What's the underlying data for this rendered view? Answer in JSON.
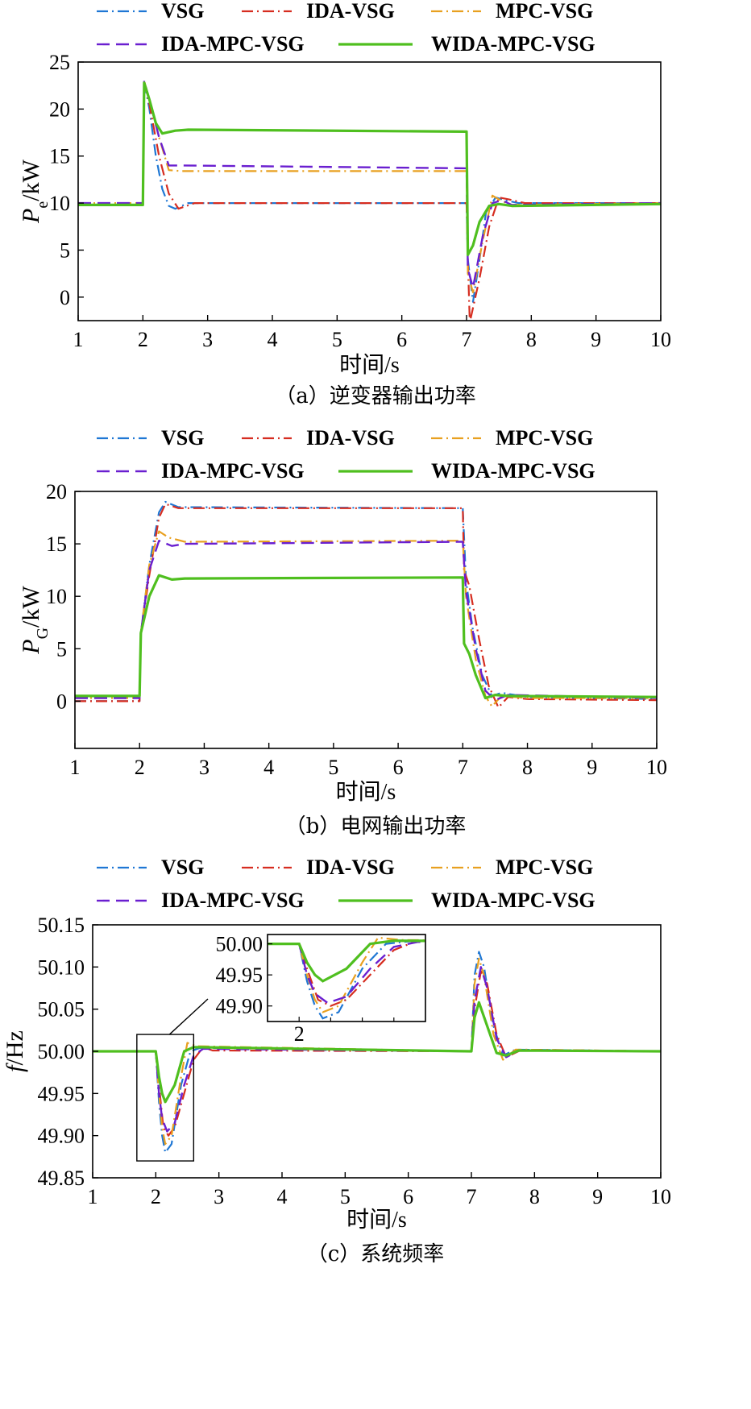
{
  "colors": {
    "VSG": "#1f77d4",
    "IDA-VSG": "#d62d20",
    "MPC-VSG": "#e8a020",
    "IDA-MPC-VSG": "#6a1fd0",
    "WIDA-MPC-VSG": "#4fbf1f"
  },
  "chart_data": [
    {
      "type": "line",
      "panel_id": "a",
      "caption": "（a）逆变器输出功率",
      "xlabel": "时间/s",
      "ylabel": "P",
      "ylabel_sub": "e",
      "ylabel_unit": "/kW",
      "xlim": [
        1,
        10
      ],
      "ylim": [
        -2.5,
        25
      ],
      "xticks": [
        1,
        2,
        3,
        4,
        5,
        6,
        7,
        8,
        9,
        10
      ],
      "yticks": [
        0,
        5,
        10,
        15,
        20,
        25
      ],
      "legend": [
        "VSG",
        "IDA-VSG",
        "MPC-VSG",
        "IDA-MPC-VSG",
        "WIDA-MPC-VSG"
      ],
      "series": [
        {
          "name": "VSG",
          "x": [
            1,
            2,
            2.02,
            2.1,
            2.2,
            2.3,
            2.4,
            2.5,
            2.7,
            7,
            7.02,
            7.1,
            7.2,
            7.3,
            7.45,
            7.6,
            7.8,
            10
          ],
          "y": [
            10,
            10,
            23,
            20,
            15,
            11.5,
            9.7,
            9.4,
            10,
            10,
            4,
            -0.5,
            4,
            9,
            10.6,
            10.3,
            10,
            10
          ]
        },
        {
          "name": "IDA-VSG",
          "x": [
            1,
            2,
            2.02,
            2.1,
            2.25,
            2.4,
            2.55,
            2.8,
            7,
            7.02,
            7.05,
            7.2,
            7.35,
            7.5,
            7.65,
            7.9,
            10
          ],
          "y": [
            10,
            10,
            23,
            20.5,
            15,
            11,
            9.4,
            10,
            10,
            4,
            -2.7,
            2,
            7.5,
            10.6,
            10.4,
            10,
            10
          ]
        },
        {
          "name": "MPC-VSG",
          "x": [
            1,
            2,
            2.02,
            2.1,
            2.25,
            2.4,
            2.6,
            7,
            7.02,
            7.1,
            7.25,
            7.4,
            7.55,
            7.7,
            10
          ],
          "y": [
            10,
            10,
            23,
            21,
            17,
            13.5,
            13.4,
            13.4,
            2.5,
            0.5,
            6,
            10.8,
            10.2,
            9.8,
            10
          ]
        },
        {
          "name": "IDA-MPC-VSG",
          "x": [
            1,
            2,
            2.02,
            2.1,
            2.25,
            2.4,
            2.6,
            7,
            7.02,
            7.1,
            7.25,
            7.4,
            7.55,
            7.7,
            10
          ],
          "y": [
            10,
            10,
            23,
            21,
            17,
            14,
            14,
            13.7,
            3,
            1,
            6.5,
            10,
            10.3,
            9.8,
            10
          ]
        },
        {
          "name": "WIDA-MPC-VSG",
          "x": [
            1,
            2,
            2.02,
            2.1,
            2.2,
            2.3,
            2.5,
            2.7,
            7,
            7.02,
            7.1,
            7.2,
            7.35,
            7.5,
            7.7,
            10
          ],
          "y": [
            9.8,
            9.8,
            22.8,
            21,
            18.5,
            17.4,
            17.7,
            17.8,
            17.6,
            4.5,
            5.5,
            8,
            9.7,
            9.9,
            9.7,
            9.9
          ]
        }
      ]
    },
    {
      "type": "line",
      "panel_id": "b",
      "caption": "（b）电网输出功率",
      "xlabel": "时间/s",
      "ylabel": "P",
      "ylabel_sub": "G",
      "ylabel_unit": "/kW",
      "xlim": [
        1,
        10
      ],
      "ylim": [
        -4.5,
        20
      ],
      "xticks": [
        1,
        2,
        3,
        4,
        5,
        6,
        7,
        8,
        9,
        10
      ],
      "yticks": [
        0,
        5,
        10,
        15,
        20
      ],
      "legend": [
        "VSG",
        "IDA-VSG",
        "MPC-VSG",
        "IDA-MPC-VSG",
        "WIDA-MPC-VSG"
      ],
      "series": [
        {
          "name": "VSG",
          "x": [
            1,
            2,
            2.02,
            2.15,
            2.3,
            2.4,
            2.6,
            7,
            7.05,
            7.15,
            7.3,
            7.45,
            7.6,
            8,
            10
          ],
          "y": [
            0,
            0,
            6.5,
            13,
            18,
            19,
            18.5,
            18.4,
            11.5,
            7,
            2.5,
            0.5,
            0.8,
            0.4,
            0.2
          ]
        },
        {
          "name": "IDA-VSG",
          "x": [
            1,
            2,
            2.02,
            2.15,
            2.3,
            2.4,
            2.6,
            7,
            7.02,
            7.1,
            7.25,
            7.4,
            7.55,
            7.7,
            8,
            10
          ],
          "y": [
            0,
            0,
            6.5,
            12,
            17.5,
            18.8,
            18.4,
            18.4,
            12.5,
            11,
            6,
            1.5,
            -0.6,
            0.4,
            0.2,
            0.1
          ]
        },
        {
          "name": "MPC-VSG",
          "x": [
            1,
            2,
            2.02,
            2.15,
            2.3,
            2.45,
            2.7,
            7,
            7.05,
            7.2,
            7.35,
            7.45,
            7.6,
            8,
            10
          ],
          "y": [
            0.3,
            0.3,
            6.5,
            13,
            16.2,
            15.6,
            15.2,
            15.3,
            10,
            4,
            0.5,
            -0.5,
            0.5,
            0.3,
            0.3
          ]
        },
        {
          "name": "IDA-MPC-VSG",
          "x": [
            1,
            2,
            2.02,
            2.15,
            2.3,
            2.5,
            2.7,
            7,
            7.05,
            7.2,
            7.35,
            7.5,
            7.7,
            10
          ],
          "y": [
            0.3,
            0.3,
            6.5,
            12.5,
            15.3,
            14.8,
            15,
            15.2,
            10.5,
            5,
            1,
            0.1,
            0.6,
            0.3
          ]
        },
        {
          "name": "WIDA-MPC-VSG",
          "x": [
            1,
            2,
            2.02,
            2.15,
            2.3,
            2.5,
            2.7,
            7,
            7.02,
            7.1,
            7.2,
            7.35,
            7.5,
            7.7,
            10
          ],
          "y": [
            0.5,
            0.5,
            6.5,
            10,
            12,
            11.6,
            11.7,
            11.8,
            5.5,
            4.5,
            2.5,
            0.3,
            0.6,
            0.5,
            0.4
          ]
        }
      ]
    },
    {
      "type": "line",
      "panel_id": "c",
      "caption": "（c）系统频率",
      "xlabel": "时间/s",
      "ylabel": "f",
      "ylabel_unit": "/Hz",
      "xlim": [
        1,
        10
      ],
      "ylim": [
        49.85,
        50.15
      ],
      "xticks": [
        1,
        2,
        3,
        4,
        5,
        6,
        7,
        8,
        9,
        10
      ],
      "yticks": [
        "49.85",
        "49.90",
        "49.95",
        "50.00",
        "50.05",
        "50.10",
        "50.15"
      ],
      "legend": [
        "VSG",
        "IDA-VSG",
        "MPC-VSG",
        "IDA-MPC-VSG",
        "WIDA-MPC-VSG"
      ],
      "series": [
        {
          "name": "VSG",
          "x": [
            1,
            2,
            2.05,
            2.1,
            2.15,
            2.25,
            2.4,
            2.55,
            2.7,
            7,
            7.05,
            7.12,
            7.2,
            7.35,
            7.5,
            7.7,
            10
          ],
          "y": [
            50,
            50,
            49.94,
            49.9,
            49.88,
            49.89,
            49.96,
            50.0,
            50.004,
            50,
            50.09,
            50.118,
            50.1,
            50.03,
            49.995,
            50.002,
            50
          ]
        },
        {
          "name": "IDA-VSG",
          "x": [
            1,
            2,
            2.05,
            2.12,
            2.2,
            2.3,
            2.45,
            2.6,
            2.75,
            2.9,
            7,
            7.05,
            7.15,
            7.25,
            7.4,
            7.55,
            7.8,
            10
          ],
          "y": [
            50,
            50,
            49.96,
            49.91,
            49.9,
            49.91,
            49.95,
            49.99,
            50.005,
            50.001,
            50,
            50.05,
            50.095,
            50.08,
            50.02,
            49.993,
            50.002,
            50
          ]
        },
        {
          "name": "MPC-VSG",
          "x": [
            1,
            2,
            2.05,
            2.1,
            2.15,
            2.25,
            2.4,
            2.5,
            2.65,
            7,
            7.05,
            7.12,
            7.2,
            7.35,
            7.5,
            7.7,
            10
          ],
          "y": [
            50,
            50,
            49.95,
            49.91,
            49.89,
            49.9,
            49.97,
            50.01,
            50.006,
            50,
            50.08,
            50.11,
            50.09,
            50.02,
            49.99,
            50.002,
            50
          ]
        },
        {
          "name": "IDA-MPC-VSG",
          "x": [
            1,
            2,
            2.05,
            2.1,
            2.18,
            2.3,
            2.45,
            2.6,
            2.75,
            7,
            7.05,
            7.15,
            7.25,
            7.4,
            7.55,
            7.75,
            10
          ],
          "y": [
            50,
            50,
            49.95,
            49.92,
            49.905,
            49.915,
            49.96,
            49.995,
            50.003,
            50,
            50.06,
            50.1,
            50.075,
            50.015,
            49.993,
            50.001,
            50
          ]
        },
        {
          "name": "WIDA-MPC-VSG",
          "x": [
            1,
            2,
            2.05,
            2.1,
            2.15,
            2.3,
            2.45,
            2.6,
            7,
            7.05,
            7.12,
            7.25,
            7.4,
            7.55,
            7.75,
            10
          ],
          "y": [
            50,
            50,
            49.97,
            49.95,
            49.94,
            49.96,
            50.0,
            50.005,
            50,
            50.04,
            50.058,
            50.03,
            49.998,
            49.995,
            50.001,
            50
          ]
        }
      ],
      "inset": {
        "xlim": [
          1.8,
          2.8
        ],
        "ylim": [
          49.875,
          50.015
        ],
        "xticks": [
          2
        ],
        "yticks": [
          "49.90",
          "49.95",
          "50.00"
        ]
      }
    }
  ]
}
